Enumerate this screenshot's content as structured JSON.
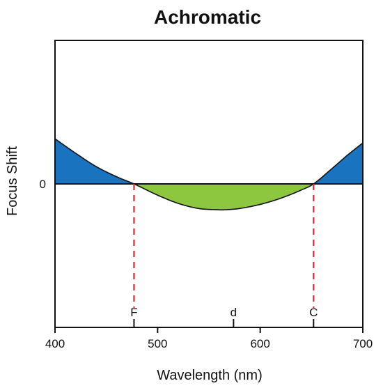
{
  "chart_data": {
    "type": "area",
    "title": "Achromatic",
    "xlabel": "Wavelength (nm)",
    "ylabel": "Focus Shift",
    "xlim": [
      400,
      700
    ],
    "ylim": [
      -1.4,
      1.4
    ],
    "x_ticks": [
      {
        "value": 400,
        "label": "400"
      },
      {
        "value": 500,
        "label": "500"
      },
      {
        "value": 600,
        "label": "600"
      },
      {
        "value": 700,
        "label": "700"
      }
    ],
    "y_ticks": [
      {
        "value": 0,
        "label": "0"
      }
    ],
    "curve": {
      "x": [
        400,
        420,
        440,
        460,
        477,
        500,
        520,
        540,
        560,
        565,
        580,
        600,
        620,
        640,
        652,
        670,
        685,
        700
      ],
      "y": [
        0.44,
        0.3,
        0.17,
        0.07,
        0.0,
        -0.11,
        -0.19,
        -0.24,
        -0.253,
        -0.253,
        -0.24,
        -0.2,
        -0.14,
        -0.06,
        0.0,
        0.15,
        0.28,
        0.4
      ]
    },
    "regions": [
      {
        "name": "positive-shift",
        "color": "#1a73bf"
      },
      {
        "name": "negative-shift",
        "color": "#8dc63f"
      }
    ],
    "markers": [
      {
        "label": "F",
        "x": 477,
        "dashed_line": true,
        "color": "#e8262a"
      },
      {
        "label": "d",
        "x": 574,
        "dashed_line": false
      },
      {
        "label": "C",
        "x": 652,
        "dashed_line": true,
        "color": "#e8262a"
      }
    ],
    "grid": false
  }
}
